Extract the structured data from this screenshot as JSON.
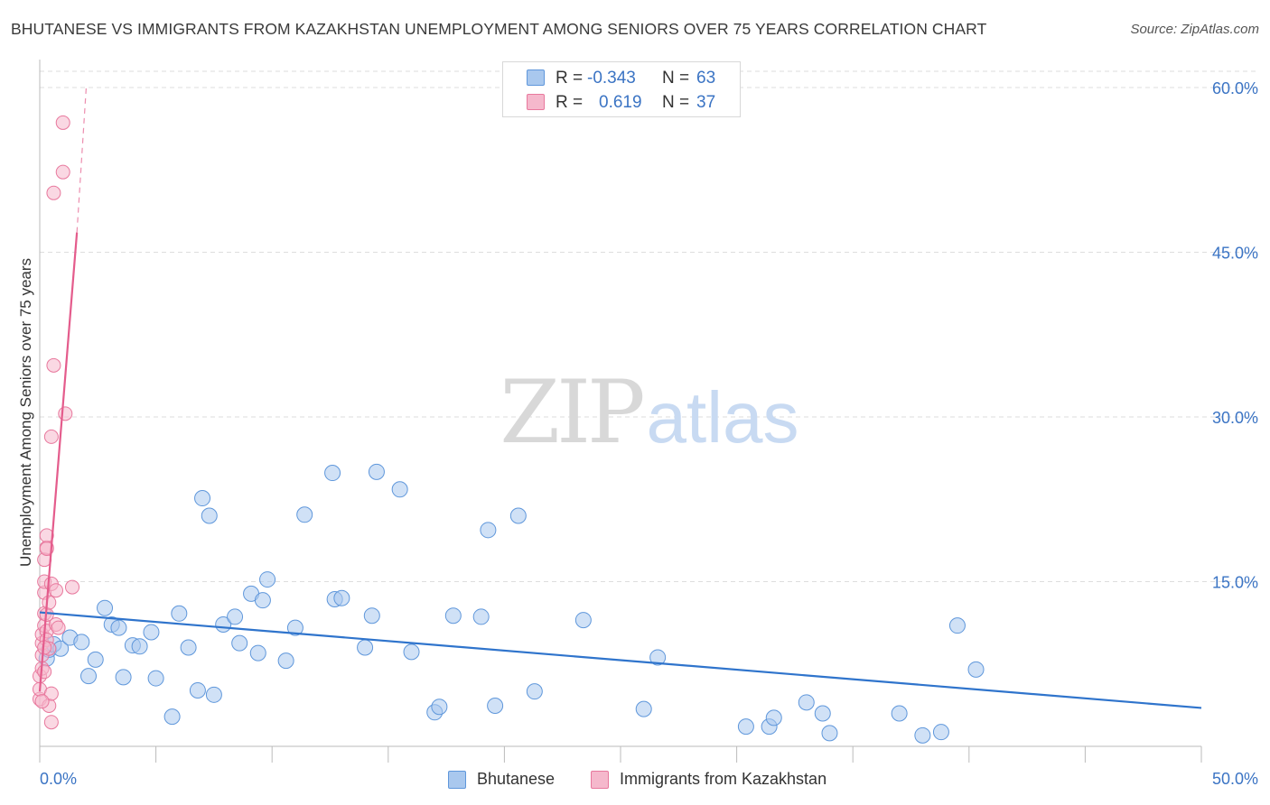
{
  "header": {
    "title": "BHUTANESE VS IMMIGRANTS FROM KAZAKHSTAN UNEMPLOYMENT AMONG SENIORS OVER 75 YEARS CORRELATION CHART",
    "source": "Source: ZipAtlas.com"
  },
  "watermark": {
    "zip": "ZIP",
    "atlas": "atlas"
  },
  "legend": {
    "series1": {
      "r_label": "R =",
      "r_value": "-0.343",
      "n_label": "N =",
      "n_value": "63"
    },
    "series2": {
      "r_label": "R =",
      "r_value": "0.619",
      "n_label": "N =",
      "n_value": "37"
    }
  },
  "colors": {
    "blue_fill": "#a9c8ee",
    "blue_stroke": "#5f97db",
    "blue_line": "#2f74cc",
    "pink_fill": "#f5b8cc",
    "pink_stroke": "#e8789d",
    "pink_line": "#e45c8c",
    "axis_text": "#3b74c4",
    "grid": "#dddddd"
  },
  "chart_data": {
    "type": "scatter",
    "title": "BHUTANESE VS IMMIGRANTS FROM KAZAKHSTAN UNEMPLOYMENT AMONG SENIORS OVER 75 YEARS CORRELATION CHART",
    "xlabel": "",
    "ylabel": "Unemployment Among Seniors over 75 years",
    "xlim": [
      0,
      50
    ],
    "ylim": [
      0,
      60
    ],
    "x_tick_labels": [
      "0.0%",
      "50.0%"
    ],
    "y_ticks": [
      15,
      30,
      45,
      60
    ],
    "y_tick_labels": [
      "15.0%",
      "30.0%",
      "45.0%",
      "60.0%"
    ],
    "grid": true,
    "legend_position": "bottom-center",
    "series": [
      {
        "name": "Bhutanese",
        "color": "#5f97db",
        "r": -0.343,
        "n": 63,
        "trend": {
          "x_start": 0,
          "y_start": 12.2,
          "x_end": 50,
          "y_end": 3.5,
          "style": "solid"
        },
        "points": [
          [
            0.3,
            8.0
          ],
          [
            0.4,
            8.8
          ],
          [
            0.6,
            9.3
          ],
          [
            0.9,
            8.9
          ],
          [
            1.3,
            9.9
          ],
          [
            1.8,
            9.5
          ],
          [
            2.1,
            6.4
          ],
          [
            2.4,
            7.9
          ],
          [
            2.8,
            12.6
          ],
          [
            3.1,
            11.1
          ],
          [
            3.4,
            10.8
          ],
          [
            3.6,
            6.3
          ],
          [
            4.0,
            9.2
          ],
          [
            4.3,
            9.1
          ],
          [
            4.8,
            10.4
          ],
          [
            5.0,
            6.2
          ],
          [
            5.7,
            2.7
          ],
          [
            6.0,
            12.1
          ],
          [
            6.4,
            9.0
          ],
          [
            6.8,
            5.1
          ],
          [
            7.0,
            22.6
          ],
          [
            7.3,
            21.0
          ],
          [
            7.5,
            4.7
          ],
          [
            7.9,
            11.1
          ],
          [
            8.4,
            11.8
          ],
          [
            8.6,
            9.4
          ],
          [
            9.1,
            13.9
          ],
          [
            9.4,
            8.5
          ],
          [
            9.6,
            13.3
          ],
          [
            9.8,
            15.2
          ],
          [
            10.6,
            7.8
          ],
          [
            11.0,
            10.8
          ],
          [
            11.4,
            21.1
          ],
          [
            12.6,
            24.9
          ],
          [
            12.7,
            13.4
          ],
          [
            13.0,
            13.5
          ],
          [
            14.0,
            9.0
          ],
          [
            14.3,
            11.9
          ],
          [
            14.5,
            25.0
          ],
          [
            15.5,
            23.4
          ],
          [
            16.0,
            8.6
          ],
          [
            17.0,
            3.1
          ],
          [
            17.2,
            3.6
          ],
          [
            17.8,
            11.9
          ],
          [
            19.0,
            11.8
          ],
          [
            19.3,
            19.7
          ],
          [
            19.6,
            3.7
          ],
          [
            20.6,
            21.0
          ],
          [
            21.3,
            5.0
          ],
          [
            23.4,
            11.5
          ],
          [
            26.0,
            3.4
          ],
          [
            26.6,
            8.1
          ],
          [
            30.4,
            1.8
          ],
          [
            31.4,
            1.8
          ],
          [
            31.6,
            2.6
          ],
          [
            33.0,
            4.0
          ],
          [
            33.7,
            3.0
          ],
          [
            34.0,
            1.2
          ],
          [
            37.0,
            3.0
          ],
          [
            38.0,
            1.0
          ],
          [
            38.8,
            1.3
          ],
          [
            39.5,
            11.0
          ],
          [
            40.3,
            7.0
          ]
        ]
      },
      {
        "name": "Immigrants from Kazakhstan",
        "color": "#e8789d",
        "r": 0.619,
        "n": 37,
        "trend": {
          "x_start": 0,
          "y_start": 5.0,
          "x_end": 1.6,
          "y_end": 46.8,
          "style": "solid",
          "dashed_extension_to": [
            2.0,
            60.0
          ]
        },
        "points": [
          [
            0.0,
            4.3
          ],
          [
            0.0,
            5.2
          ],
          [
            0.0,
            6.4
          ],
          [
            0.1,
            7.1
          ],
          [
            0.1,
            8.3
          ],
          [
            0.1,
            9.4
          ],
          [
            0.1,
            10.2
          ],
          [
            0.2,
            11.0
          ],
          [
            0.2,
            12.1
          ],
          [
            0.2,
            14.0
          ],
          [
            0.2,
            15.0
          ],
          [
            0.2,
            17.0
          ],
          [
            0.3,
            18.1
          ],
          [
            0.3,
            18.0
          ],
          [
            0.3,
            19.2
          ],
          [
            0.3,
            10.5
          ],
          [
            0.3,
            9.7
          ],
          [
            0.4,
            8.9
          ],
          [
            0.4,
            3.7
          ],
          [
            0.5,
            2.2
          ],
          [
            0.5,
            4.8
          ],
          [
            0.5,
            14.8
          ],
          [
            0.5,
            28.2
          ],
          [
            0.6,
            34.7
          ],
          [
            0.6,
            50.4
          ],
          [
            0.7,
            14.2
          ],
          [
            0.7,
            11.1
          ],
          [
            0.8,
            10.8
          ],
          [
            1.0,
            56.8
          ],
          [
            1.0,
            52.3
          ],
          [
            1.1,
            30.3
          ],
          [
            1.4,
            14.5
          ],
          [
            0.1,
            4.1
          ],
          [
            0.2,
            6.8
          ],
          [
            0.3,
            12.0
          ],
          [
            0.4,
            13.1
          ],
          [
            0.2,
            9.0
          ]
        ]
      }
    ]
  }
}
